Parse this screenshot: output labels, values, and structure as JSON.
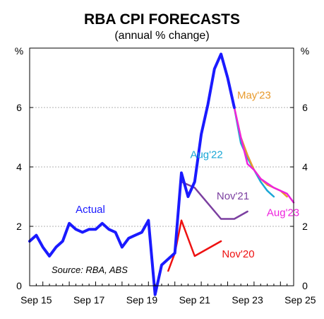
{
  "chart_data": {
    "type": "line",
    "title": "RBA CPI FORECASTS",
    "subtitle": "(annual % change)",
    "unit_left": "%",
    "unit_right": "%",
    "source": "Source: RBA, ABS",
    "xlim": [
      2015.5,
      2025.5
    ],
    "ylim": [
      0,
      8
    ],
    "x_ticks": [
      {
        "x": 2015.75,
        "label": "Sep 15"
      },
      {
        "x": 2017.75,
        "label": "Sep 17"
      },
      {
        "x": 2019.75,
        "label": "Sep 19"
      },
      {
        "x": 2021.75,
        "label": "Sep 21"
      },
      {
        "x": 2023.75,
        "label": "Sep 23"
      },
      {
        "x": 2025.75,
        "label": "Sep 25"
      }
    ],
    "y_ticks": [
      0,
      2,
      4,
      6
    ],
    "grid": true,
    "series": [
      {
        "name": "Actual",
        "color": "#1a1aff",
        "width": 4,
        "x": [
          2015.5,
          2015.75,
          2016.0,
          2016.25,
          2016.5,
          2016.75,
          2017.0,
          2017.25,
          2017.5,
          2017.75,
          2018.0,
          2018.25,
          2018.5,
          2018.75,
          2019.0,
          2019.25,
          2019.5,
          2019.75,
          2020.0,
          2020.25,
          2020.5,
          2020.75,
          2021.0,
          2021.25,
          2021.5,
          2021.75,
          2022.0,
          2022.25,
          2022.5,
          2022.75,
          2023.0,
          2023.25
        ],
        "y": [
          1.5,
          1.7,
          1.3,
          1.0,
          1.3,
          1.5,
          2.1,
          1.9,
          1.8,
          1.9,
          1.9,
          2.1,
          1.9,
          1.8,
          1.3,
          1.6,
          1.7,
          1.8,
          2.2,
          -0.3,
          0.7,
          0.9,
          1.1,
          3.8,
          3.0,
          3.5,
          5.1,
          6.1,
          7.3,
          7.8,
          7.0,
          6.0
        ],
        "label_pos": {
          "x": 2017.8,
          "y": 2.45
        }
      },
      {
        "name": "Nov'20",
        "color": "#ee1111",
        "width": 2.5,
        "x": [
          2020.75,
          2021.0,
          2021.25,
          2021.75,
          2022.75
        ],
        "y": [
          0.5,
          1.1,
          2.2,
          1.0,
          1.5
        ],
        "label_pos": {
          "x": 2023.4,
          "y": 0.95
        }
      },
      {
        "name": "Nov'21",
        "color": "#7b3fa0",
        "width": 2.5,
        "x": [
          2021.25,
          2021.75,
          2022.75,
          2023.25,
          2023.75
        ],
        "y": [
          3.5,
          3.3,
          2.25,
          2.25,
          2.5
        ],
        "label_pos": {
          "x": 2023.2,
          "y": 2.9
        }
      },
      {
        "name": "Aug'22",
        "color": "#1aa7d6",
        "width": 2.5,
        "x": [
          2022.5,
          2022.75,
          2023.0,
          2023.25,
          2023.5,
          2023.75,
          2024.0,
          2024.25,
          2024.5,
          2024.75
        ],
        "y": [
          7.3,
          7.8,
          7.0,
          6.0,
          4.8,
          4.3,
          3.9,
          3.5,
          3.2,
          3.0
        ],
        "label_pos": {
          "x": 2022.2,
          "y": 4.3
        }
      },
      {
        "name": "May'23",
        "color": "#e89a2c",
        "width": 2.5,
        "x": [
          2023.25,
          2023.5,
          2023.75,
          2024.0,
          2024.25,
          2024.5,
          2024.75,
          2025.0,
          2025.25
        ],
        "y": [
          6.0,
          5.0,
          4.4,
          3.9,
          3.6,
          3.4,
          3.3,
          3.2,
          3.0
        ],
        "label_pos": {
          "x": 2024.0,
          "y": 6.3
        }
      },
      {
        "name": "Aug'23",
        "color": "#ee22dd",
        "width": 2.5,
        "x": [
          2023.25,
          2023.5,
          2023.75,
          2024.0,
          2024.25,
          2024.5,
          2024.75,
          2025.0,
          2025.25,
          2025.5
        ],
        "y": [
          6.0,
          5.0,
          4.1,
          3.9,
          3.6,
          3.45,
          3.3,
          3.2,
          3.1,
          2.8
        ],
        "label_pos": {
          "x": 2025.1,
          "y": 2.35
        }
      }
    ]
  }
}
